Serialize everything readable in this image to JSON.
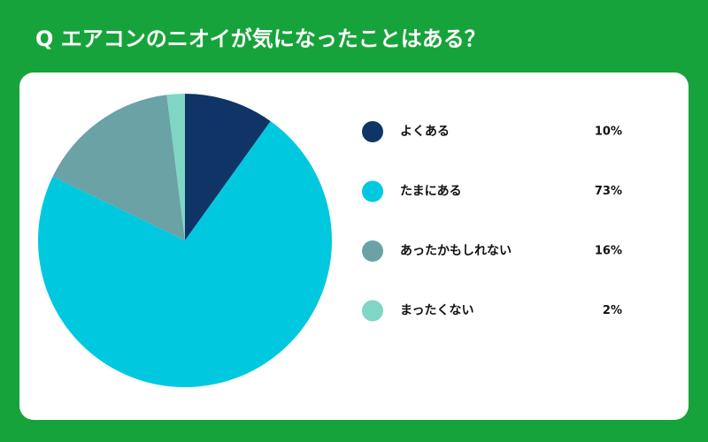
{
  "chart_data": {
    "type": "pie",
    "title": "Q エアコンのニオイが気になったことはある？",
    "categories": [
      "よくある",
      "たまにある",
      "あったかもしれない",
      "まったくない"
    ],
    "values": [
      10,
      73,
      16,
      2
    ],
    "value_labels": [
      "10%",
      "73%",
      "16%",
      "2%"
    ],
    "colors": [
      "#0e3566",
      "#00c8df",
      "#6aa2a6",
      "#7fd6c4"
    ],
    "legend": "right"
  }
}
